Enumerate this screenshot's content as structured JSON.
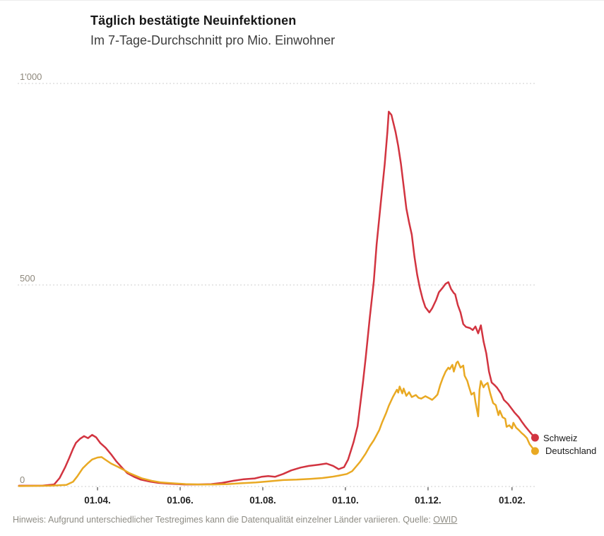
{
  "header": {
    "title": "Täglich bestätigte Neuinfektionen",
    "subtitle": "Im 7-Tage-Durchschnitt pro Mio. Einwohner"
  },
  "footer": {
    "note": "Hinweis: Aufgrund unterschiedlicher Testregimes kann die Datenqualität einzelner Länder variieren.",
    "source_label": "Quelle:",
    "source_link": "OWID"
  },
  "chart_data": {
    "type": "line",
    "title": "Täglich bestätigte Neuinfektionen",
    "subtitle": "Im 7-Tage-Durchschnitt pro Mio. Einwohner",
    "x_unit": "days since 2020-02-01",
    "ylim": [
      0,
      1000
    ],
    "grid": "horizontal dashed",
    "legend_position": "right of line ends",
    "style": {
      "grid_color": "#cfcfcf",
      "y_label_color": "#8e887c",
      "x_label_color": "#222222",
      "tick_color": "#4a4a4a"
    },
    "y_ticks": [
      {
        "label": "1'000",
        "value": 1000
      },
      {
        "label": "500",
        "value": 500
      },
      {
        "label": "0",
        "value": 0
      }
    ],
    "x_ticks": [
      {
        "label": "01.04.",
        "day": 60
      },
      {
        "label": "01.06.",
        "day": 121
      },
      {
        "label": "01.08.",
        "day": 182
      },
      {
        "label": "01.10.",
        "day": 243
      },
      {
        "label": "01.12.",
        "day": 304
      },
      {
        "label": "01.02.",
        "day": 366
      }
    ],
    "series": [
      {
        "name": "Schweiz",
        "color": "#d23440",
        "points": [
          [
            2,
            2
          ],
          [
            19,
            2
          ],
          [
            28,
            5
          ],
          [
            32,
            21
          ],
          [
            36,
            47
          ],
          [
            39,
            70
          ],
          [
            42,
            94
          ],
          [
            44,
            108
          ],
          [
            47,
            118
          ],
          [
            50,
            125
          ],
          [
            53,
            120
          ],
          [
            56,
            128
          ],
          [
            59,
            122
          ],
          [
            62,
            108
          ],
          [
            66,
            96
          ],
          [
            70,
            80
          ],
          [
            74,
            62
          ],
          [
            78,
            47
          ],
          [
            82,
            33
          ],
          [
            87,
            24
          ],
          [
            92,
            17
          ],
          [
            99,
            12
          ],
          [
            105,
            9
          ],
          [
            113,
            7
          ],
          [
            124,
            5
          ],
          [
            134,
            5
          ],
          [
            144,
            6
          ],
          [
            152,
            9
          ],
          [
            160,
            14
          ],
          [
            168,
            18
          ],
          [
            176,
            20
          ],
          [
            181,
            24
          ],
          [
            186,
            26
          ],
          [
            191,
            24
          ],
          [
            197,
            31
          ],
          [
            203,
            40
          ],
          [
            210,
            47
          ],
          [
            216,
            51
          ],
          [
            223,
            54
          ],
          [
            229,
            57
          ],
          [
            234,
            51
          ],
          [
            238,
            43
          ],
          [
            242,
            48
          ],
          [
            245,
            67
          ],
          [
            249,
            110
          ],
          [
            252,
            150
          ],
          [
            256,
            260
          ],
          [
            258,
            320
          ],
          [
            261,
            420
          ],
          [
            264,
            510
          ],
          [
            266,
            600
          ],
          [
            269,
            700
          ],
          [
            272,
            800
          ],
          [
            274,
            880
          ],
          [
            275,
            930
          ],
          [
            277,
            922
          ],
          [
            280,
            880
          ],
          [
            282,
            845
          ],
          [
            284,
            800
          ],
          [
            286,
            745
          ],
          [
            288,
            690
          ],
          [
            290,
            655
          ],
          [
            292,
            625
          ],
          [
            294,
            570
          ],
          [
            296,
            525
          ],
          [
            298,
            492
          ],
          [
            300,
            465
          ],
          [
            302,
            445
          ],
          [
            305,
            432
          ],
          [
            307,
            442
          ],
          [
            310,
            463
          ],
          [
            312,
            482
          ],
          [
            315,
            494
          ],
          [
            317,
            503
          ],
          [
            319,
            507
          ],
          [
            321,
            490
          ],
          [
            323,
            480
          ],
          [
            324,
            477
          ],
          [
            326,
            450
          ],
          [
            328,
            432
          ],
          [
            330,
            403
          ],
          [
            332,
            396
          ],
          [
            335,
            393
          ],
          [
            337,
            388
          ],
          [
            339,
            397
          ],
          [
            341,
            380
          ],
          [
            343,
            400
          ],
          [
            345,
            360
          ],
          [
            347,
            330
          ],
          [
            349,
            285
          ],
          [
            351,
            258
          ],
          [
            353,
            252
          ],
          [
            355,
            245
          ],
          [
            358,
            230
          ],
          [
            360,
            215
          ],
          [
            363,
            205
          ],
          [
            366,
            192
          ],
          [
            368,
            183
          ],
          [
            371,
            172
          ],
          [
            373,
            162
          ],
          [
            376,
            148
          ],
          [
            379,
            136
          ],
          [
            381,
            128
          ],
          [
            383,
            121
          ]
        ]
      },
      {
        "name": "Deutschland",
        "color": "#e9a923",
        "points": [
          [
            2,
            1
          ],
          [
            25,
            2
          ],
          [
            37,
            4
          ],
          [
            42,
            12
          ],
          [
            45,
            25
          ],
          [
            49,
            45
          ],
          [
            53,
            58
          ],
          [
            56,
            67
          ],
          [
            60,
            72
          ],
          [
            63,
            73
          ],
          [
            66,
            66
          ],
          [
            70,
            57
          ],
          [
            75,
            49
          ],
          [
            79,
            42
          ],
          [
            83,
            34
          ],
          [
            88,
            27
          ],
          [
            93,
            20
          ],
          [
            100,
            14
          ],
          [
            107,
            10
          ],
          [
            115,
            8
          ],
          [
            125,
            6
          ],
          [
            135,
            5
          ],
          [
            146,
            5
          ],
          [
            156,
            6
          ],
          [
            166,
            8
          ],
          [
            177,
            10
          ],
          [
            187,
            13
          ],
          [
            197,
            16
          ],
          [
            207,
            17
          ],
          [
            217,
            19
          ],
          [
            226,
            21
          ],
          [
            233,
            24
          ],
          [
            238,
            27
          ],
          [
            244,
            31
          ],
          [
            248,
            38
          ],
          [
            251,
            50
          ],
          [
            254,
            62
          ],
          [
            258,
            82
          ],
          [
            261,
            100
          ],
          [
            264,
            115
          ],
          [
            268,
            140
          ],
          [
            270,
            158
          ],
          [
            273,
            182
          ],
          [
            275,
            200
          ],
          [
            278,
            222
          ],
          [
            281,
            240
          ],
          [
            282,
            233
          ],
          [
            283,
            248
          ],
          [
            285,
            231
          ],
          [
            286,
            243
          ],
          [
            288,
            225
          ],
          [
            290,
            234
          ],
          [
            292,
            222
          ],
          [
            295,
            227
          ],
          [
            297,
            220
          ],
          [
            299,
            218
          ],
          [
            302,
            224
          ],
          [
            305,
            219
          ],
          [
            307,
            215
          ],
          [
            309,
            221
          ],
          [
            311,
            228
          ],
          [
            313,
            252
          ],
          [
            315,
            270
          ],
          [
            317,
            285
          ],
          [
            319,
            295
          ],
          [
            320,
            291
          ],
          [
            322,
            302
          ],
          [
            323,
            285
          ],
          [
            325,
            307
          ],
          [
            326,
            310
          ],
          [
            328,
            295
          ],
          [
            330,
            300
          ],
          [
            331,
            275
          ],
          [
            333,
            262
          ],
          [
            334,
            250
          ],
          [
            336,
            228
          ],
          [
            338,
            233
          ],
          [
            339,
            210
          ],
          [
            341,
            174
          ],
          [
            342,
            240
          ],
          [
            343,
            262
          ],
          [
            345,
            246
          ],
          [
            346,
            252
          ],
          [
            348,
            257
          ],
          [
            350,
            230
          ],
          [
            352,
            207
          ],
          [
            354,
            202
          ],
          [
            356,
            177
          ],
          [
            357,
            188
          ],
          [
            359,
            172
          ],
          [
            361,
            168
          ],
          [
            362,
            148
          ],
          [
            364,
            152
          ],
          [
            366,
            144
          ],
          [
            367,
            158
          ],
          [
            369,
            146
          ],
          [
            371,
            140
          ],
          [
            373,
            133
          ],
          [
            375,
            127
          ],
          [
            377,
            120
          ],
          [
            379,
            105
          ],
          [
            381,
            96
          ],
          [
            383,
            88
          ]
        ]
      }
    ]
  }
}
